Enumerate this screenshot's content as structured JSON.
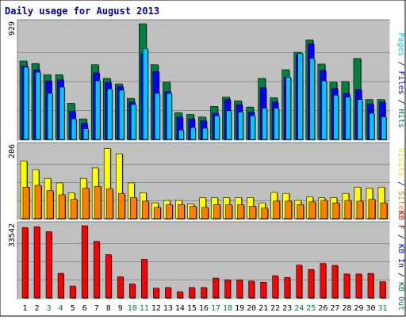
{
  "chart_data": {
    "type": "bar",
    "title": "Daily usage for August 2013",
    "days": [
      "1",
      "2",
      "3",
      "4",
      "5",
      "6",
      "7",
      "8",
      "9",
      "10",
      "11",
      "12",
      "13",
      "14",
      "15",
      "16",
      "17",
      "18",
      "19",
      "20",
      "21",
      "22",
      "23",
      "24",
      "25",
      "26",
      "27",
      "28",
      "29",
      "30",
      "31"
    ],
    "weekend_days": [
      "3",
      "4",
      "10",
      "11",
      "17",
      "18",
      "24",
      "25",
      "31"
    ],
    "panels": [
      {
        "id": "hits-files-pages",
        "ymax": 929,
        "ymax_label": "929",
        "right_labels": [
          {
            "text": "Pages",
            "color": "#00c8ff"
          },
          {
            "text": " / ",
            "color": "#000000"
          },
          {
            "text": "Files",
            "color": "#0000ff"
          },
          {
            "text": " / ",
            "color": "#000000"
          },
          {
            "text": "Hits",
            "color": "#008040"
          }
        ],
        "series": [
          {
            "name": "Hits",
            "color": "#008040",
            "values": [
              630,
              610,
              520,
              520,
              290,
              165,
              600,
              490,
              445,
              330,
              929,
              600,
              460,
              215,
              200,
              180,
              265,
              340,
              310,
              260,
              490,
              335,
              560,
              700,
              800,
              605,
              460,
              465,
              650,
              320,
              320
            ]
          },
          {
            "name": "Files",
            "color": "#0000ff",
            "values": [
              590,
              560,
              470,
              480,
              225,
              130,
              535,
              460,
              425,
              300,
              690,
              545,
              385,
              180,
              165,
              150,
              210,
              320,
              280,
              220,
              415,
              300,
              500,
              680,
              770,
              555,
              410,
              370,
              400,
              285,
              300
            ]
          },
          {
            "name": "Pages",
            "color": "#00c8ff",
            "values": [
              580,
              540,
              370,
              420,
              165,
              85,
              470,
              405,
              395,
              280,
              730,
              370,
              370,
              75,
              95,
              90,
              190,
              230,
              220,
              190,
              250,
              250,
              500,
              690,
              650,
              470,
              355,
              340,
              320,
              210,
              180
            ]
          }
        ]
      },
      {
        "id": "visits-sites",
        "ymax": 206,
        "ymax_label": "206",
        "right_labels": [
          {
            "text": "Visits",
            "color": "#e8e800"
          },
          {
            "text": " / ",
            "color": "#000000"
          },
          {
            "text": "Sites",
            "color": "#ff8000"
          }
        ],
        "series": [
          {
            "name": "Visits",
            "color": "#ffff00",
            "values": [
              165,
              140,
              115,
              102,
              74,
              115,
              145,
              200,
              185,
              102,
              74,
              45,
              52,
              52,
              42,
              60,
              60,
              60,
              60,
              60,
              45,
              75,
              72,
              52,
              62,
              60,
              60,
              72,
              90,
              87,
              90
            ]
          },
          {
            "name": "Sites",
            "color": "#ff8000",
            "values": [
              90,
              95,
              80,
              68,
              55,
              87,
              92,
              85,
              72,
              60,
              50,
              32,
              40,
              40,
              35,
              32,
              40,
              40,
              40,
              35,
              30,
              50,
              50,
              40,
              48,
              52,
              45,
              52,
              50,
              55,
              45
            ]
          }
        ]
      },
      {
        "id": "kbf-kbin-kbout",
        "ymax": 33542,
        "ymax_label": "33542",
        "right_labels": [
          {
            "text": "KB F",
            "color": "#ff0000"
          },
          {
            "text": " / ",
            "color": "#000000"
          },
          {
            "text": "KB In",
            "color": "#0000ff"
          },
          {
            "text": " / ",
            "color": "#000000"
          },
          {
            "text": "KB Out",
            "color": "#008040"
          }
        ],
        "series": [
          {
            "name": "KB F",
            "color": "#ff0000",
            "values": [
              32700,
              33100,
              30800,
              11400,
              5500,
              33542,
              26300,
              20100,
              9800,
              6500,
              17900,
              4500,
              4800,
              2800,
              4800,
              4800,
              9200,
              8400,
              8400,
              7800,
              7300,
              10300,
              9500,
              15200,
              13200,
              16000,
              15100,
              11100,
              11100,
              11400,
              7500
            ]
          }
        ]
      }
    ]
  }
}
